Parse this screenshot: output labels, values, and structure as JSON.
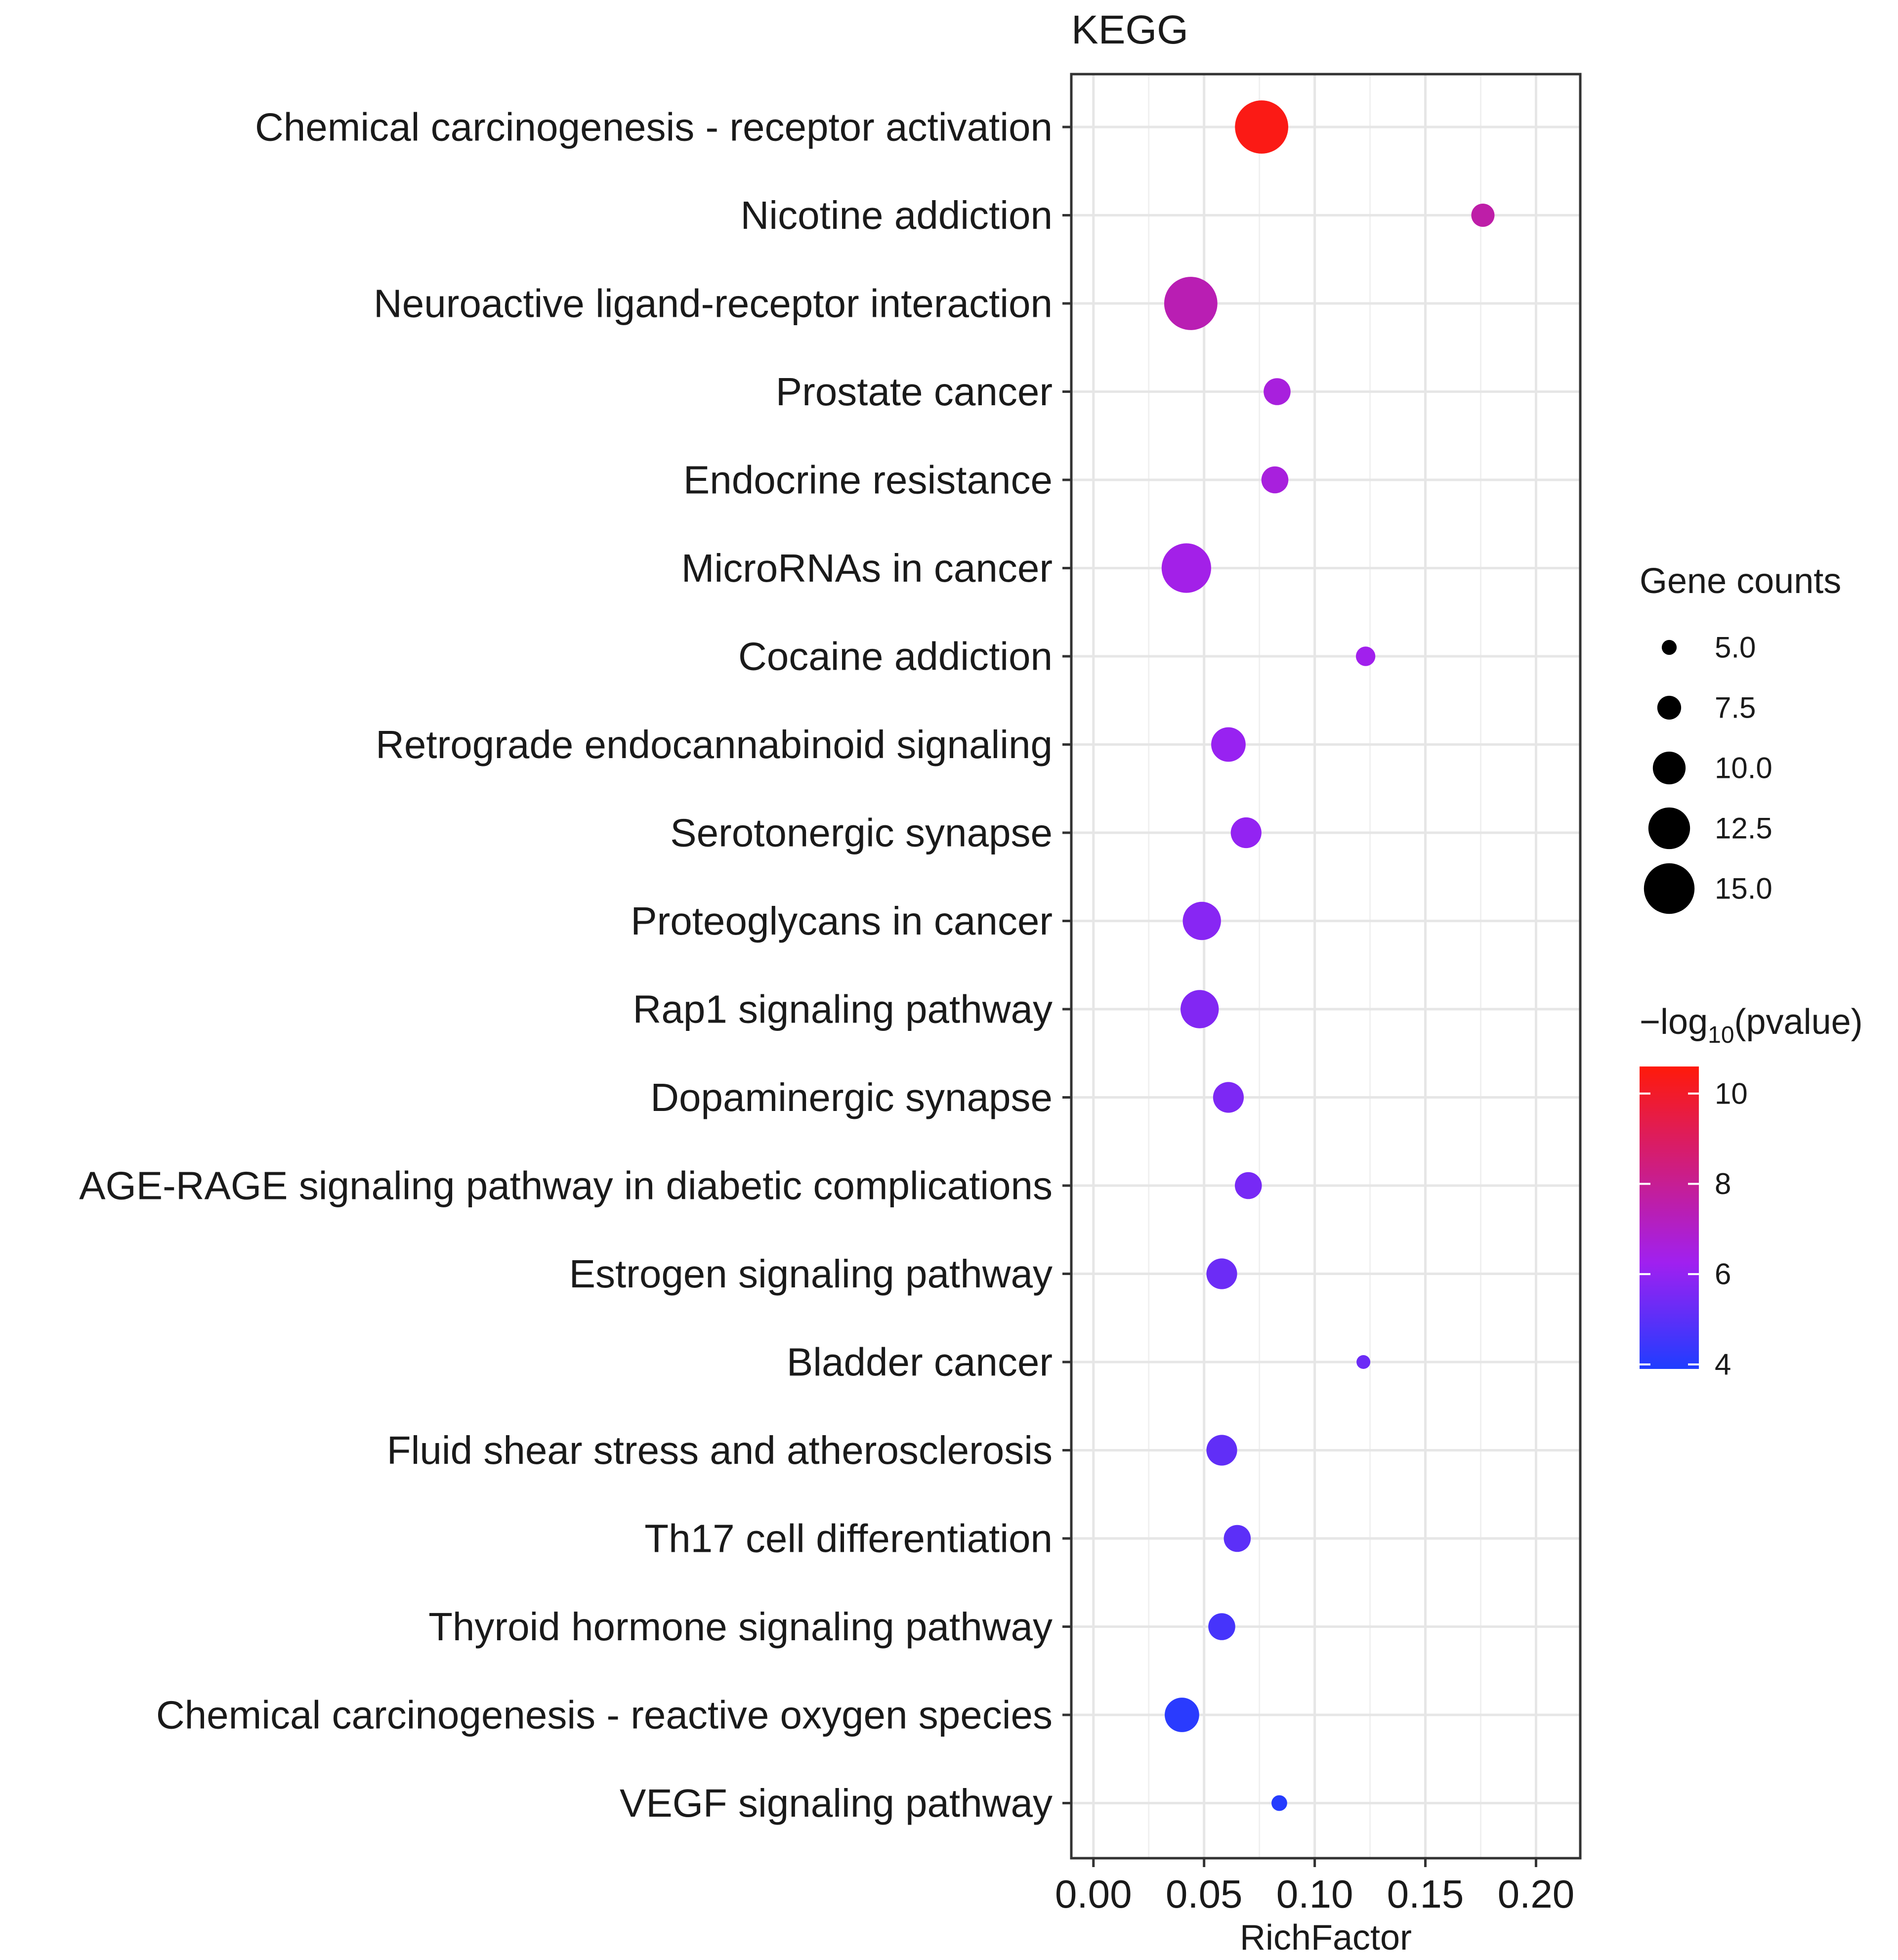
{
  "chart_data": {
    "type": "scatter",
    "title": "KEGG",
    "xlabel": "RichFactor",
    "ylabel": "",
    "xlim": [
      -0.01,
      0.22
    ],
    "x_ticks": [
      "0.00",
      "0.05",
      "0.10",
      "0.15",
      "0.20"
    ],
    "x_tick_values": [
      0.0,
      0.05,
      0.1,
      0.15,
      0.2
    ],
    "grid": true,
    "points": [
      {
        "pathway": "Chemical carcinogenesis - receptor activation",
        "rich_factor": 0.076,
        "gene_count": 15,
        "neg_log10_pvalue": 10.4
      },
      {
        "pathway": "Nicotine addiction",
        "rich_factor": 0.176,
        "gene_count": 7,
        "neg_log10_pvalue": 7.6
      },
      {
        "pathway": "Neuroactive ligand-receptor interaction",
        "rich_factor": 0.044,
        "gene_count": 15,
        "neg_log10_pvalue": 7.4
      },
      {
        "pathway": "Prostate cancer",
        "rich_factor": 0.083,
        "gene_count": 8,
        "neg_log10_pvalue": 6.6
      },
      {
        "pathway": "Endocrine resistance",
        "rich_factor": 0.082,
        "gene_count": 8,
        "neg_log10_pvalue": 6.6
      },
      {
        "pathway": "MicroRNAs in cancer",
        "rich_factor": 0.042,
        "gene_count": 14,
        "neg_log10_pvalue": 6.4
      },
      {
        "pathway": "Cocaine addiction",
        "rich_factor": 0.123,
        "gene_count": 6,
        "neg_log10_pvalue": 6.3
      },
      {
        "pathway": "Retrograde endocannabinoid signaling",
        "rich_factor": 0.061,
        "gene_count": 10,
        "neg_log10_pvalue": 6.1
      },
      {
        "pathway": "Serotonergic synapse",
        "rich_factor": 0.069,
        "gene_count": 9,
        "neg_log10_pvalue": 6.0
      },
      {
        "pathway": "Proteoglycans in cancer",
        "rich_factor": 0.049,
        "gene_count": 11,
        "neg_log10_pvalue": 5.8
      },
      {
        "pathway": "Rap1 signaling pathway",
        "rich_factor": 0.048,
        "gene_count": 11,
        "neg_log10_pvalue": 5.7
      },
      {
        "pathway": "Dopaminergic synapse",
        "rich_factor": 0.061,
        "gene_count": 9,
        "neg_log10_pvalue": 5.6
      },
      {
        "pathway": "AGE-RAGE signaling pathway in diabetic complications",
        "rich_factor": 0.07,
        "gene_count": 8,
        "neg_log10_pvalue": 5.5
      },
      {
        "pathway": "Estrogen signaling pathway",
        "rich_factor": 0.058,
        "gene_count": 9,
        "neg_log10_pvalue": 5.3
      },
      {
        "pathway": "Bladder cancer",
        "rich_factor": 0.122,
        "gene_count": 4.5,
        "neg_log10_pvalue": 5.3
      },
      {
        "pathway": "Fluid shear stress and atherosclerosis",
        "rich_factor": 0.058,
        "gene_count": 9,
        "neg_log10_pvalue": 5.1
      },
      {
        "pathway": "Th17 cell differentiation",
        "rich_factor": 0.065,
        "gene_count": 8,
        "neg_log10_pvalue": 5.0
      },
      {
        "pathway": "Thyroid hormone signaling pathway",
        "rich_factor": 0.058,
        "gene_count": 8,
        "neg_log10_pvalue": 4.6
      },
      {
        "pathway": "Chemical carcinogenesis - reactive oxygen species",
        "rich_factor": 0.04,
        "gene_count": 10,
        "neg_log10_pvalue": 4.1
      },
      {
        "pathway": "VEGF signaling pathway",
        "rich_factor": 0.084,
        "gene_count": 5,
        "neg_log10_pvalue": 4.0
      }
    ],
    "size_legend": {
      "title": "Gene counts",
      "values": [
        5.0,
        7.5,
        10.0,
        12.5,
        15.0
      ],
      "labels": [
        "5.0",
        "7.5",
        "10.0",
        "12.5",
        "15.0"
      ]
    },
    "color_legend": {
      "title_prefix": "−log",
      "title_subscript": "10",
      "title_suffix": "(pvalue)",
      "min": 3.9,
      "max": 10.6,
      "ticks": [
        4,
        6,
        8,
        10
      ],
      "tick_labels": [
        "4",
        "6",
        "8",
        "10"
      ],
      "color_low": "#1f3dff",
      "color_mid": "#a020f0",
      "color_high": "#ff1a0a"
    }
  }
}
